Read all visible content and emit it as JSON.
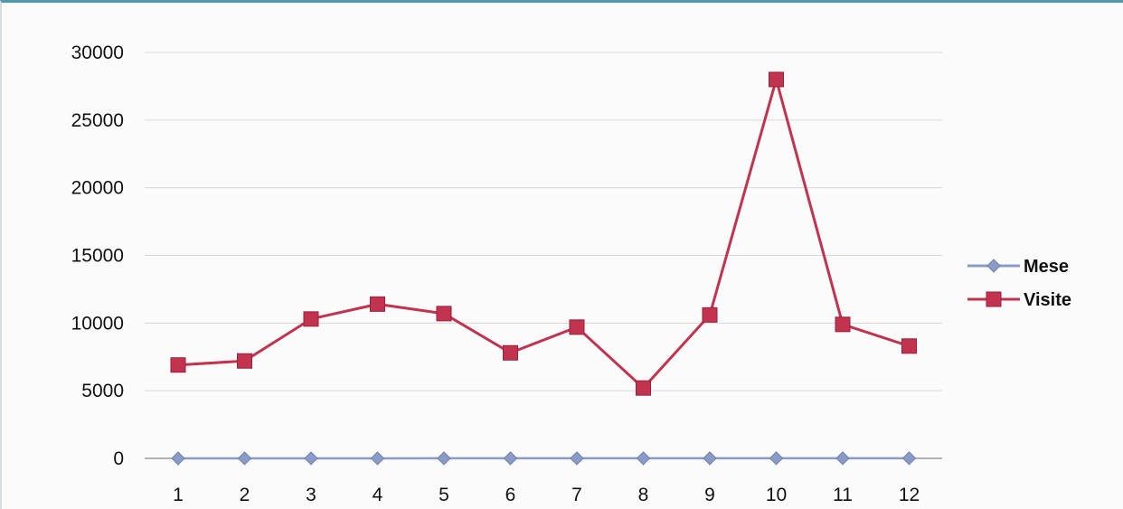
{
  "chart_data": {
    "type": "line",
    "title": "",
    "xlabel": "",
    "ylabel": "",
    "categories": [
      "1",
      "2",
      "3",
      "4",
      "5",
      "6",
      "7",
      "8",
      "9",
      "10",
      "11",
      "12"
    ],
    "ylim": [
      0,
      30000
    ],
    "yticks": [
      "0",
      "5000",
      "10000",
      "15000",
      "20000",
      "25000",
      "30000"
    ],
    "grid": true,
    "legend_position": "right",
    "series": [
      {
        "name": "Mese",
        "marker": "diamond",
        "color": "#8a9bc7",
        "values": [
          1,
          2,
          3,
          4,
          5,
          6,
          7,
          8,
          9,
          10,
          11,
          12
        ]
      },
      {
        "name": "Visite",
        "marker": "square",
        "color": "#c2334f",
        "values": [
          6900,
          7200,
          10300,
          11400,
          10700,
          7800,
          9700,
          5200,
          10600,
          28000,
          9900,
          8300
        ]
      }
    ]
  }
}
